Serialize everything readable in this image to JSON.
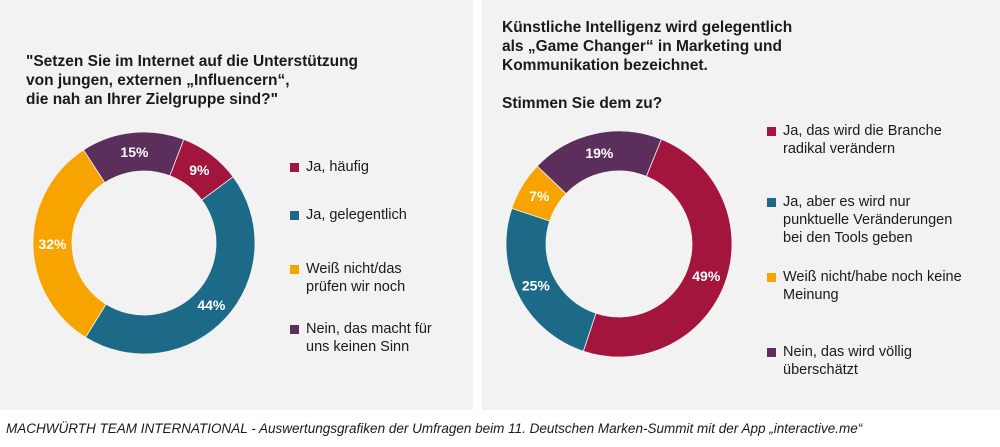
{
  "chart_data": [
    {
      "type": "pie",
      "title": "\"Setzen Sie im Internet auf die Unterstützung von jungen, externen „Influencern“, die nah an Ihrer Zielgruppe sind?\"",
      "title_lines": [
        "\"Setzen Sie im Internet auf die Unterstützung",
        "von jungen, externen „Influencern“,",
        "die nah an Ihrer Zielgruppe sind?\""
      ],
      "donut": true,
      "categories": [
        "Ja, häufig",
        "Ja, gelegentlich",
        "Weiß nicht/das prüfen wir noch",
        "Nein, das macht für uns keinen Sinn"
      ],
      "legend_lines": [
        "Ja, häufig",
        "Ja, gelegentlich",
        "Weiß nicht/das\nprüfen wir noch",
        "Nein, das macht für\nuns keinen Sinn"
      ],
      "values": [
        9,
        44,
        32,
        15
      ],
      "labels": [
        "9%",
        "44%",
        "32%",
        "15%"
      ],
      "colors": [
        "#a3153c",
        "#1d6a88",
        "#f8a400",
        "#5c2e5c"
      ],
      "legend_position": "right"
    },
    {
      "type": "pie",
      "title": "Künstliche Intelligenz wird gelegentlich als „Game Changer“ in Marketing und Kommunikation bezeichnet. Stimmen Sie dem zu?",
      "title_lines": [
        "Künstliche Intelligenz wird gelegentlich",
        "als „Game Changer“ in Marketing und",
        "Kommunikation bezeichnet."
      ],
      "subtitle": "Stimmen Sie dem zu?",
      "donut": true,
      "categories": [
        "Ja, das wird die Branche radikal verändern",
        "Ja, aber es wird nur punktuelle Veränderungen bei den Tools geben",
        "Weiß nicht/habe noch keine Meinung",
        "Nein, das wird völlig überschätzt"
      ],
      "legend_lines": [
        "Ja, das wird die Branche\nradikal verändern",
        "Ja, aber es wird nur\npunktuelle Veränderungen\nbei den Tools geben",
        "Weiß nicht/habe noch keine\nMeinung",
        "Nein, das wird völlig\nüberschätzt"
      ],
      "values": [
        49,
        25,
        7,
        19
      ],
      "labels": [
        "49%",
        "25%",
        "7%",
        "19%"
      ],
      "colors": [
        "#a3153c",
        "#1d6a88",
        "#f8a400",
        "#5c2e5c"
      ],
      "legend_position": "right"
    }
  ],
  "footer": "MACHWÜRTH TEAM INTERNATIONAL - Auswertungsgrafiken der Umfragen beim 11. Deutschen Marken-Summit mit der App „interactive.me“"
}
